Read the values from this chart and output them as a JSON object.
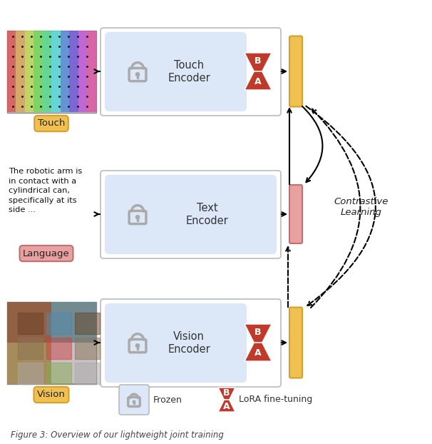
{
  "bg_color": "#ffffff",
  "encoder_box_color": "#dce8f8",
  "encoder_box_edge": "#b0b0b0",
  "touch_bar_color": "#f0c050",
  "touch_bar_edge": "#d4a030",
  "language_bar_color": "#e8a0a0",
  "language_bar_edge": "#c07070",
  "vision_bar_color": "#f0c050",
  "vision_bar_edge": "#d4a030",
  "lora_color": "#c0392b",
  "lock_color": "#aaaaaa",
  "touch_label": "Touch",
  "language_label": "Language",
  "vision_label": "Vision",
  "touch_label_bg": "#f0c050",
  "touch_label_edge": "#d4a030",
  "language_label_bg": "#e8a0a0",
  "language_label_edge": "#c07070",
  "vision_label_bg": "#f0c050",
  "vision_label_edge": "#d4a030",
  "contrastive_text": "Contrastive\nLearning",
  "frozen_label": "Frozen",
  "lora_label": "LoRA fine-tuning",
  "outer_box_edge": "#bbbbbb",
  "outer_box_face": "#ffffff"
}
